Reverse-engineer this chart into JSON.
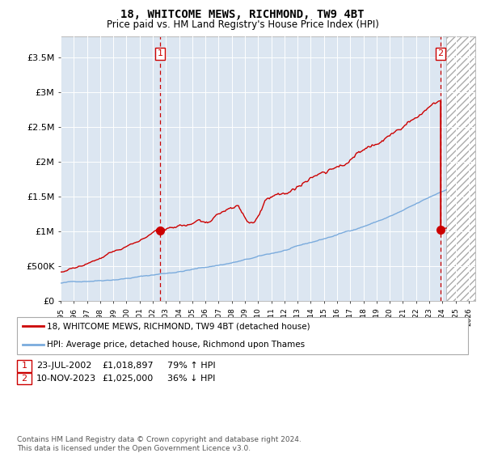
{
  "title": "18, WHITCOME MEWS, RICHMOND, TW9 4BT",
  "subtitle": "Price paid vs. HM Land Registry's House Price Index (HPI)",
  "plot_bg_color": "#dce6f1",
  "ylabel_ticks": [
    "£0",
    "£500K",
    "£1M",
    "£1.5M",
    "£2M",
    "£2.5M",
    "£3M",
    "£3.5M"
  ],
  "ytick_vals": [
    0,
    500000,
    1000000,
    1500000,
    2000000,
    2500000,
    3000000,
    3500000
  ],
  "ylim": [
    0,
    3800000
  ],
  "xlim_start": 1995.0,
  "xlim_end": 2026.5,
  "sale1_date": 2002.55,
  "sale1_price": 1018897,
  "sale2_date": 2023.86,
  "sale2_price": 1025000,
  "hatch_start": 2024.3,
  "legend_line1": "18, WHITCOME MEWS, RICHMOND, TW9 4BT (detached house)",
  "legend_line2": "HPI: Average price, detached house, Richmond upon Thames",
  "footer": "Contains HM Land Registry data © Crown copyright and database right 2024.\nThis data is licensed under the Open Government Licence v3.0.",
  "hpi_color": "#7aabdd",
  "price_color": "#cc0000",
  "vline_color": "#cc0000",
  "grid_color": "#ffffff"
}
